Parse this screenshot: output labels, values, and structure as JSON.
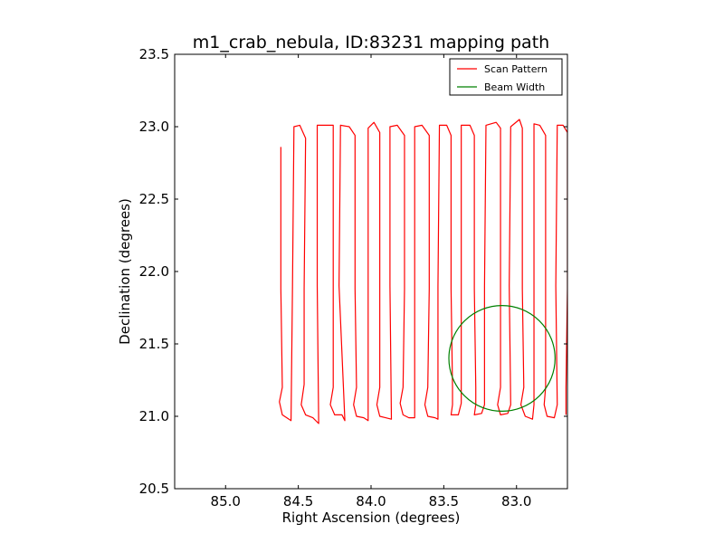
{
  "chart_data": {
    "type": "line",
    "title": "m1_crab_nebula, ID:83231 mapping path",
    "xlabel": "Right Ascension (degrees)",
    "ylabel": "Declination (degrees)",
    "xlim": [
      85.35,
      82.65
    ],
    "ylim": [
      20.5,
      23.5
    ],
    "x_reversed": true,
    "xticks": [
      85.0,
      84.5,
      84.0,
      83.5,
      83.0
    ],
    "xtick_labels": [
      "85.0",
      "84.5",
      "84.0",
      "83.5",
      "83.0"
    ],
    "yticks": [
      20.5,
      21.0,
      21.5,
      22.0,
      22.5,
      23.0,
      23.5
    ],
    "ytick_labels": [
      "20.5",
      "21.0",
      "21.5",
      "22.0",
      "22.5",
      "23.0",
      "23.5"
    ],
    "grid": false,
    "legend_position": "top-right",
    "series": [
      {
        "name": "Scan Pattern",
        "color": "#ff0000",
        "points": [
          [
            84.62,
            22.86
          ],
          [
            84.62,
            21.88
          ],
          [
            84.61,
            21.2
          ],
          [
            84.63,
            21.1
          ],
          [
            84.61,
            21.01
          ],
          [
            84.55,
            20.97
          ],
          [
            84.54,
            21.9
          ],
          [
            84.53,
            23.0
          ],
          [
            84.49,
            23.01
          ],
          [
            84.45,
            22.92
          ],
          [
            84.46,
            21.88
          ],
          [
            84.46,
            21.22
          ],
          [
            84.48,
            21.08
          ],
          [
            84.45,
            21.01
          ],
          [
            84.4,
            20.99
          ],
          [
            84.36,
            20.95
          ],
          [
            84.37,
            21.9
          ],
          [
            84.37,
            23.01
          ],
          [
            84.3,
            23.01
          ],
          [
            84.26,
            23.01
          ],
          [
            84.26,
            21.88
          ],
          [
            84.26,
            21.2
          ],
          [
            84.28,
            21.08
          ],
          [
            84.25,
            21.01
          ],
          [
            84.2,
            21.01
          ],
          [
            84.18,
            20.97
          ],
          [
            84.22,
            21.9
          ],
          [
            84.21,
            23.01
          ],
          [
            84.15,
            23.0
          ],
          [
            84.11,
            22.94
          ],
          [
            84.11,
            21.88
          ],
          [
            84.1,
            21.2
          ],
          [
            84.12,
            21.08
          ],
          [
            84.1,
            21.0
          ],
          [
            84.05,
            20.99
          ],
          [
            84.02,
            20.97
          ],
          [
            84.02,
            21.9
          ],
          [
            84.02,
            22.99
          ],
          [
            83.98,
            23.03
          ],
          [
            83.94,
            22.96
          ],
          [
            83.94,
            21.88
          ],
          [
            83.94,
            21.2
          ],
          [
            83.96,
            21.08
          ],
          [
            83.94,
            21.0
          ],
          [
            83.9,
            20.99
          ],
          [
            83.86,
            20.98
          ],
          [
            83.87,
            21.9
          ],
          [
            83.87,
            23.0
          ],
          [
            83.82,
            23.01
          ],
          [
            83.77,
            22.94
          ],
          [
            83.77,
            21.88
          ],
          [
            83.78,
            21.2
          ],
          [
            83.8,
            21.09
          ],
          [
            83.78,
            21.01
          ],
          [
            83.74,
            20.99
          ],
          [
            83.7,
            20.99
          ],
          [
            83.7,
            21.9
          ],
          [
            83.7,
            23.0
          ],
          [
            83.65,
            23.01
          ],
          [
            83.6,
            22.94
          ],
          [
            83.6,
            21.88
          ],
          [
            83.61,
            21.2
          ],
          [
            83.63,
            21.08
          ],
          [
            83.61,
            21.0
          ],
          [
            83.56,
            20.99
          ],
          [
            83.54,
            20.98
          ],
          [
            83.54,
            21.9
          ],
          [
            83.53,
            23.01
          ],
          [
            83.48,
            23.01
          ],
          [
            83.45,
            22.94
          ],
          [
            83.45,
            21.88
          ],
          [
            83.44,
            21.2
          ],
          [
            83.44,
            21.08
          ],
          [
            83.45,
            21.01
          ],
          [
            83.4,
            21.01
          ],
          [
            83.38,
            21.09
          ],
          [
            83.38,
            21.9
          ],
          [
            83.38,
            23.01
          ],
          [
            83.32,
            23.01
          ],
          [
            83.29,
            22.94
          ],
          [
            83.29,
            21.88
          ],
          [
            83.28,
            21.2
          ],
          [
            83.28,
            21.08
          ],
          [
            83.29,
            21.01
          ],
          [
            83.24,
            21.02
          ],
          [
            83.22,
            21.08
          ],
          [
            83.22,
            21.9
          ],
          [
            83.21,
            23.01
          ],
          [
            83.14,
            23.03
          ],
          [
            83.11,
            22.99
          ],
          [
            83.11,
            21.88
          ],
          [
            83.11,
            21.2
          ],
          [
            83.13,
            21.08
          ],
          [
            83.11,
            21.01
          ],
          [
            83.06,
            21.02
          ],
          [
            83.04,
            21.08
          ],
          [
            83.05,
            21.9
          ],
          [
            83.04,
            23.0
          ],
          [
            82.98,
            23.05
          ],
          [
            82.96,
            22.99
          ],
          [
            82.96,
            21.88
          ],
          [
            82.95,
            21.2
          ],
          [
            82.97,
            21.08
          ],
          [
            82.94,
            21.0
          ],
          [
            82.89,
            20.98
          ],
          [
            82.88,
            21.08
          ],
          [
            82.88,
            21.9
          ],
          [
            82.88,
            23.02
          ],
          [
            82.84,
            23.01
          ],
          [
            82.8,
            22.94
          ],
          [
            82.8,
            21.88
          ],
          [
            82.8,
            21.2
          ],
          [
            82.81,
            21.08
          ],
          [
            82.79,
            21.0
          ],
          [
            82.74,
            20.99
          ],
          [
            82.72,
            21.08
          ],
          [
            82.73,
            21.9
          ],
          [
            82.72,
            23.01
          ],
          [
            82.68,
            23.01
          ],
          [
            82.65,
            22.96
          ],
          [
            82.65,
            21.88
          ],
          [
            82.66,
            21.2
          ],
          [
            82.66,
            21.08
          ],
          [
            82.66,
            21.01
          ]
        ]
      },
      {
        "name": "Beam Width",
        "color": "#008000",
        "shape": "circle",
        "center": [
          83.1,
          21.4
        ],
        "radius_deg": 0.365
      }
    ]
  }
}
